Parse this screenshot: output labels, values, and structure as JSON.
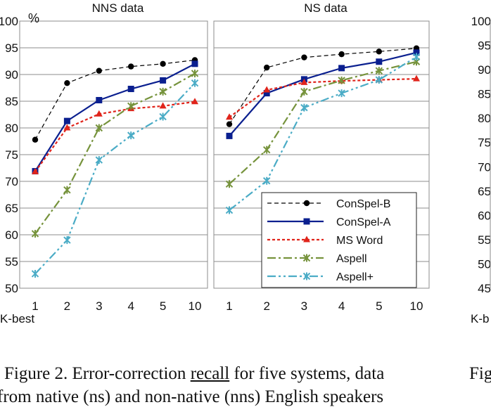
{
  "chart_data": [
    {
      "type": "line",
      "title": "NNS data",
      "ylabel": "%",
      "xlabel": "K-best",
      "ylim": [
        50,
        100
      ],
      "yticks": [
        50,
        55,
        60,
        65,
        70,
        75,
        80,
        85,
        90,
        95,
        100
      ],
      "categories": [
        "1",
        "2",
        "3",
        "4",
        "5",
        "10"
      ],
      "grid": true,
      "series": [
        {
          "name": "ConSpel-B",
          "values": [
            77.8,
            88.4,
            90.7,
            91.5,
            92.0,
            92.7
          ]
        },
        {
          "name": "ConSpel-A",
          "values": [
            71.9,
            81.3,
            85.2,
            87.3,
            88.9,
            92.0
          ]
        },
        {
          "name": "MS Word",
          "values": [
            71.8,
            80.0,
            82.6,
            83.6,
            84.1,
            84.9
          ]
        },
        {
          "name": "Aspell",
          "values": [
            60.2,
            68.4,
            80.0,
            84.1,
            86.8,
            90.2
          ]
        },
        {
          "name": "Aspell+",
          "values": [
            52.7,
            59.0,
            74.0,
            78.6,
            82.1,
            88.4
          ]
        }
      ]
    },
    {
      "type": "line",
      "title": "NS data",
      "ylim": [
        50,
        100
      ],
      "categories": [
        "1",
        "2",
        "3",
        "4",
        "5",
        "10"
      ],
      "grid": true,
      "legend": "bottom-right",
      "series": [
        {
          "name": "ConSpel-B",
          "values": [
            80.7,
            91.3,
            93.2,
            93.8,
            94.3,
            94.9
          ]
        },
        {
          "name": "ConSpel-A",
          "values": [
            78.5,
            86.5,
            89.1,
            91.2,
            92.4,
            94.1
          ]
        },
        {
          "name": "MS Word",
          "values": [
            82.0,
            87.1,
            88.5,
            88.8,
            89.0,
            89.2
          ]
        },
        {
          "name": "Aspell",
          "values": [
            69.5,
            75.9,
            86.8,
            88.9,
            90.7,
            92.4
          ]
        },
        {
          "name": "Aspell+",
          "values": [
            64.6,
            70.1,
            83.8,
            86.5,
            89.0,
            93.3
          ]
        }
      ]
    },
    {
      "type": "line",
      "partial": true,
      "yticks": [
        45,
        50,
        55,
        60,
        65,
        70,
        75,
        80,
        85,
        90,
        95,
        100
      ],
      "ylim": [
        45,
        100
      ],
      "xlabel": "K-b"
    }
  ],
  "styles": {
    "ConSpel-B": {
      "color": "#000000",
      "dash": "6,4",
      "marker": "circle",
      "width": 1.2
    },
    "ConSpel-A": {
      "color": "#0a1f8f",
      "dash": "",
      "marker": "square",
      "width": 2.2
    },
    "MS Word": {
      "color": "#e0241b",
      "dash": "4,3",
      "marker": "triangle",
      "width": 2.2
    },
    "Aspell": {
      "color": "#76933c",
      "dash": "12,4,3,4",
      "marker": "star",
      "width": 2.2
    },
    "Aspell+": {
      "color": "#4bacc6",
      "dash": "12,4,3,4,3,4",
      "marker": "star",
      "width": 2.2
    }
  },
  "caption": {
    "line1_prefix": "Figure 2. Error-correction ",
    "line1_underlined": "recall",
    "line1_suffix": " for five systems, data",
    "line2": "from native (ns) and non-native (nns) English speakers",
    "right_fragment": "Fig"
  }
}
